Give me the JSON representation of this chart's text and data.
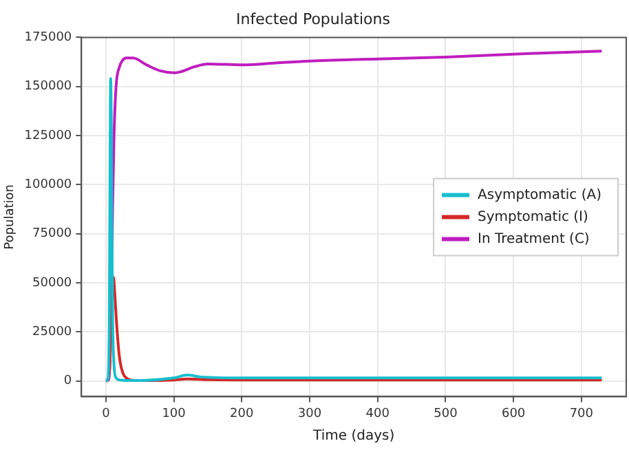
{
  "chart_data": {
    "type": "line",
    "title": "Infected Populations",
    "xlabel": "Time (days)",
    "ylabel": "Population",
    "xlim": [
      -36,
      766
    ],
    "xticks": [
      0,
      100,
      200,
      300,
      400,
      500,
      600,
      700
    ],
    "ylim": [
      -8000,
      175000
    ],
    "yticks": [
      0,
      25000,
      50000,
      75000,
      100000,
      125000,
      150000,
      175000
    ],
    "grid": true,
    "legend": "right",
    "marker": "none",
    "line_style": "solid",
    "series": [
      {
        "name": "Asymptomatic (A)",
        "color": "#17becf",
        "x": [
          0,
          3,
          5,
          6,
          7,
          8,
          9,
          10,
          12,
          15,
          20,
          30,
          60,
          100,
          120,
          140,
          200,
          300,
          500,
          730
        ],
        "values": [
          0,
          1000,
          30000,
          100000,
          154000,
          130000,
          70000,
          30000,
          8000,
          1500,
          500,
          200,
          300,
          1500,
          3000,
          2000,
          1500,
          1500,
          1500,
          1500
        ]
      },
      {
        "name": "Symptomatic (I)",
        "color": "#d62728",
        "x": [
          0,
          3,
          6,
          8,
          10,
          11,
          13,
          16,
          20,
          25,
          30,
          40,
          60,
          100,
          120,
          150,
          200,
          300,
          500,
          730
        ],
        "values": [
          0,
          500,
          10000,
          35000,
          52000,
          53000,
          45000,
          28000,
          12000,
          4000,
          1500,
          300,
          200,
          500,
          1000,
          600,
          500,
          500,
          500,
          500
        ]
      },
      {
        "name": "In Treatment (C)",
        "color": "#bf1ebf",
        "x": [
          0,
          4,
          6,
          8,
          10,
          12,
          15,
          20,
          25,
          30,
          40,
          60,
          80,
          100,
          110,
          130,
          150,
          200,
          250,
          300,
          400,
          500,
          600,
          730
        ],
        "values": [
          0,
          500,
          10000,
          45000,
          90000,
          125000,
          150000,
          160000,
          163500,
          164500,
          164500,
          161000,
          158000,
          157000,
          157500,
          160000,
          161500,
          161000,
          162000,
          163000,
          164000,
          165000,
          166500,
          168000
        ]
      }
    ]
  }
}
